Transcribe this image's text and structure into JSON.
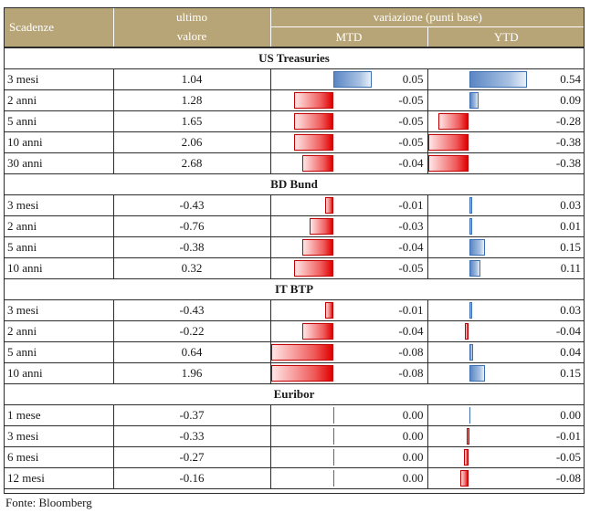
{
  "header": {
    "col_scadenze": "Scadenze",
    "col_ultimo_1": "ultimo",
    "col_ultimo_2": "valore",
    "col_variazione": "variazione (punti base)",
    "col_mtd": "MTD",
    "col_ytd": "YTD"
  },
  "sections": [
    {
      "title": "US Treasuries",
      "rows": [
        {
          "label": "3 mesi",
          "value": "1.04",
          "mtd": "0.05",
          "ytd": "0.54"
        },
        {
          "label": "2 anni",
          "value": "1.28",
          "mtd": "-0.05",
          "ytd": "0.09"
        },
        {
          "label": "5 anni",
          "value": "1.65",
          "mtd": "-0.05",
          "ytd": "-0.28"
        },
        {
          "label": "10 anni",
          "value": "2.06",
          "mtd": "-0.05",
          "ytd": "-0.38"
        },
        {
          "label": "30 anni",
          "value": "2.68",
          "mtd": "-0.04",
          "ytd": "-0.38"
        }
      ]
    },
    {
      "title": "BD Bund",
      "rows": [
        {
          "label": "3 mesi",
          "value": "-0.43",
          "mtd": "-0.01",
          "ytd": "0.03"
        },
        {
          "label": "2 anni",
          "value": "-0.76",
          "mtd": "-0.03",
          "ytd": "0.01"
        },
        {
          "label": "5 anni",
          "value": "-0.38",
          "mtd": "-0.04",
          "ytd": "0.15"
        },
        {
          "label": "10 anni",
          "value": "0.32",
          "mtd": "-0.05",
          "ytd": "0.11"
        }
      ]
    },
    {
      "title": "IT BTP",
      "rows": [
        {
          "label": "3 mesi",
          "value": "-0.43",
          "mtd": "-0.01",
          "ytd": "0.03"
        },
        {
          "label": "2 anni",
          "value": "-0.22",
          "mtd": "-0.04",
          "ytd": "-0.04"
        },
        {
          "label": "5 anni",
          "value": "0.64",
          "mtd": "-0.08",
          "ytd": "0.04"
        },
        {
          "label": "10 anni",
          "value": "1.96",
          "mtd": "-0.08",
          "ytd": "0.15"
        }
      ]
    },
    {
      "title": "Euribor",
      "rows": [
        {
          "label": "1 mese",
          "value": "-0.37",
          "mtd": "0.00",
          "ytd": "0.00"
        },
        {
          "label": "3 mesi",
          "value": "-0.33",
          "mtd": "0.00",
          "ytd": "-0.01"
        },
        {
          "label": "6 mesi",
          "value": "-0.27",
          "mtd": "0.00",
          "ytd": "-0.05"
        },
        {
          "label": "12 mesi",
          "value": "-0.16",
          "mtd": "0.00",
          "ytd": "-0.08"
        }
      ]
    }
  ],
  "source": "Fonte: Bloomberg",
  "colors": {
    "header_bg": "#b8a577",
    "neg_bar": "#e00000",
    "pos_bar": "#3d6eb0"
  }
}
